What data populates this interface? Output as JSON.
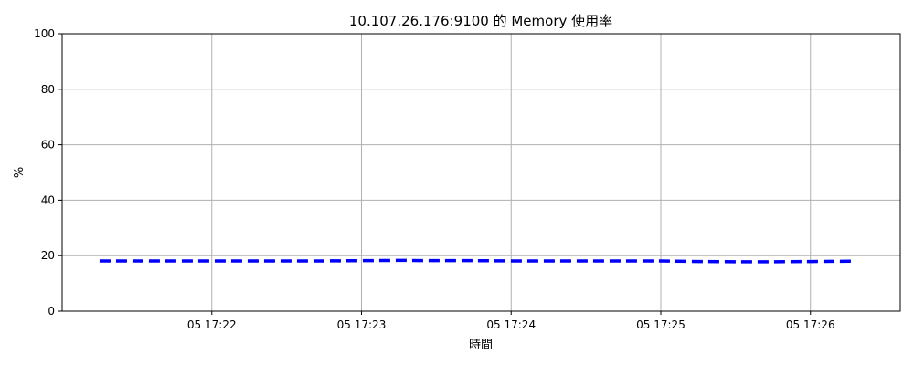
{
  "chart_data": {
    "type": "line",
    "title": "10.107.26.176:9100 的 Memory 使用率",
    "xlabel": "時間",
    "ylabel": "%",
    "ylim": [
      0,
      100
    ],
    "yticks": [
      0,
      20,
      40,
      60,
      80,
      100
    ],
    "x_tick_labels": [
      "05 17:22",
      "05 17:23",
      "05 17:24",
      "05 17:25",
      "05 17:26"
    ],
    "x_tick_minutes": [
      22,
      23,
      24,
      25,
      26
    ],
    "xlim_minutes": [
      21.0,
      26.6
    ],
    "grid": true,
    "legend": "none",
    "series": [
      {
        "color": "#0000ff",
        "line_style": "dashed",
        "x_minutes": [
          21.25,
          21.5,
          21.75,
          22.0,
          22.25,
          22.5,
          22.75,
          23.0,
          23.25,
          23.5,
          23.75,
          24.0,
          24.25,
          24.5,
          24.75,
          25.0,
          25.25,
          25.5,
          25.75,
          26.0,
          26.3
        ],
        "values": [
          18.1,
          18.1,
          18.1,
          18.1,
          18.1,
          18.1,
          18.1,
          18.2,
          18.3,
          18.2,
          18.2,
          18.1,
          18.1,
          18.1,
          18.1,
          18.1,
          17.9,
          17.8,
          17.8,
          17.9,
          18.0
        ]
      }
    ]
  }
}
